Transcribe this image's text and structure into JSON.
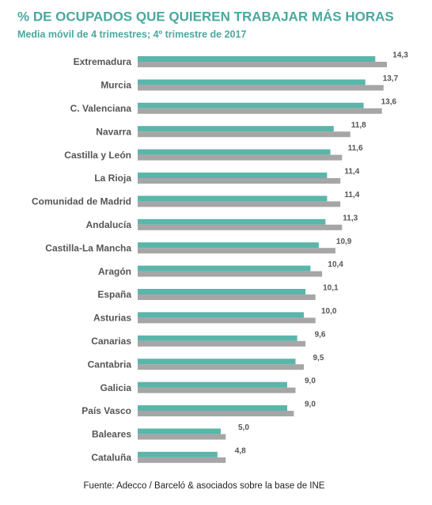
{
  "chart_data": {
    "type": "bar",
    "orientation": "horizontal",
    "title": "% DE OCUPADOS QUE QUIEREN TRABAJAR MÁS HORAS",
    "subtitle": "Media móvil de 4 trimestres; 4º trimestre de 2017",
    "source": "Fuente: Adecco / Barceló & asociados sobre la base de INE",
    "categories": [
      "Extremadura",
      "Murcia",
      "C. Valenciana",
      "Navarra",
      "Castilla y León",
      "La Rioja",
      "Comunidad de Madrid",
      "Andalucía",
      "Castilla-La Mancha",
      "Aragón",
      "España",
      "Asturias",
      "Canarias",
      "Cantabria",
      "Galicia",
      "País Vasco",
      "Baleares",
      "Cataluña"
    ],
    "series": [
      {
        "color": "#5ab5aa",
        "values": [
          14.3,
          13.7,
          13.6,
          11.8,
          11.6,
          11.4,
          11.4,
          11.3,
          10.9,
          10.4,
          10.1,
          10.0,
          9.6,
          9.5,
          9.0,
          9.0,
          5.0,
          4.8
        ],
        "value_labels": [
          "14,3",
          "13,7",
          "13,6",
          "11,8",
          "11,6",
          "11,4",
          "11,4",
          "11,3",
          "10,9",
          "10,4",
          "10,1",
          "10,0",
          "9,6",
          "9,5",
          "9,0",
          "9,0",
          "5,0",
          "4,8"
        ]
      },
      {
        "color": "#a6a6a6",
        "values": [
          15.0,
          14.8,
          14.7,
          12.8,
          12.3,
          12.2,
          12.2,
          12.3,
          11.9,
          11.1,
          10.7,
          10.7,
          10.1,
          10.0,
          9.5,
          9.4,
          5.3,
          5.3
        ]
      }
    ],
    "xlim": [
      0,
      17
    ]
  }
}
